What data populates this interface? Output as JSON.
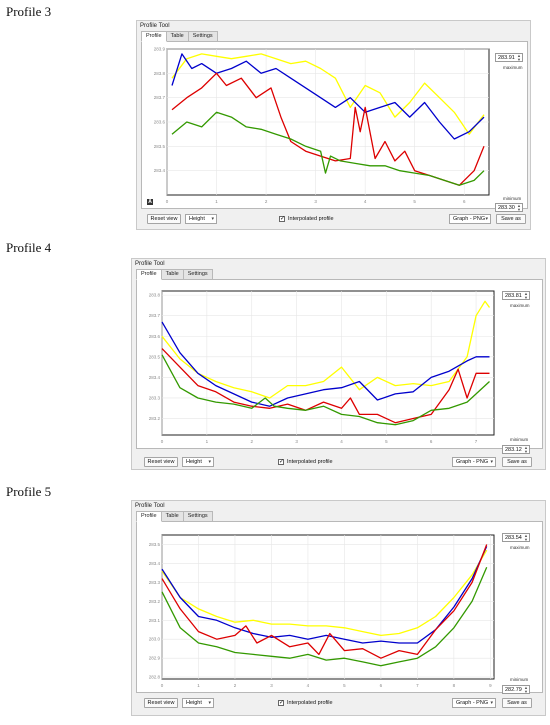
{
  "profiles": [
    {
      "heading": "Profile 3",
      "window_title": "Profile Tool",
      "tabs": [
        {
          "label": "Profile"
        },
        {
          "label": "Table"
        },
        {
          "label": "Settings"
        }
      ],
      "maximum_value": "283.91",
      "maximum_label": "maximum",
      "minimum_value": "283.30",
      "minimum_label": "minimum",
      "reset_view": "Reset view",
      "height_option": "Height",
      "interpolated_label": "Interpolated profile",
      "graph_option": "Graph - PNG",
      "save_as": "Save as"
    },
    {
      "heading": "Profile 4",
      "window_title": "Profile Tool",
      "tabs": [
        {
          "label": "Profile"
        },
        {
          "label": "Table"
        },
        {
          "label": "Settings"
        }
      ],
      "maximum_value": "283.81",
      "maximum_label": "maximum",
      "minimum_value": "283.12",
      "minimum_label": "minimum",
      "reset_view": "Reset view",
      "height_option": "Height",
      "interpolated_label": "Interpolated profile",
      "graph_option": "Graph - PNG",
      "save_as": "Save as"
    },
    {
      "heading": "Profile 5",
      "window_title": "Profile Tool",
      "tabs": [
        {
          "label": "Profile"
        },
        {
          "label": "Table"
        },
        {
          "label": "Settings"
        }
      ],
      "maximum_value": "283.54",
      "maximum_label": "maximum",
      "minimum_value": "282.79",
      "minimum_label": "minimum",
      "reset_view": "Reset view",
      "height_option": "Height",
      "interpolated_label": "Interpolated profile",
      "graph_option": "Graph - PNG",
      "save_as": "Save as"
    }
  ],
  "chart_data": [
    {
      "type": "line",
      "xlim": [
        0,
        6.5
      ],
      "ylim": [
        283.3,
        283.9
      ],
      "xticks": [
        0,
        1,
        2,
        3,
        4,
        5,
        6
      ],
      "yticks": [
        283.4,
        283.5,
        283.6,
        283.7,
        283.8,
        283.9
      ],
      "grid": true,
      "series": [
        {
          "color": "#ffff00",
          "x": [
            0.1,
            0.4,
            0.7,
            1.0,
            1.3,
            1.6,
            1.9,
            2.2,
            2.5,
            2.8,
            3.1,
            3.4,
            3.7,
            4.0,
            4.3,
            4.6,
            4.9,
            5.2,
            5.5,
            5.8,
            6.1,
            6.4
          ],
          "y": [
            283.78,
            283.86,
            283.88,
            283.87,
            283.86,
            283.87,
            283.88,
            283.86,
            283.84,
            283.85,
            283.82,
            283.78,
            283.66,
            283.75,
            283.72,
            283.62,
            283.68,
            283.76,
            283.7,
            283.64,
            283.55,
            283.63
          ]
        },
        {
          "color": "#0000cc",
          "x": [
            0.1,
            0.3,
            0.5,
            0.7,
            1.0,
            1.3,
            1.6,
            1.9,
            2.2,
            2.5,
            2.8,
            3.1,
            3.4,
            3.7,
            4.0,
            4.3,
            4.6,
            4.9,
            5.2,
            5.5,
            5.8,
            6.1,
            6.4
          ],
          "y": [
            283.75,
            283.88,
            283.82,
            283.84,
            283.8,
            283.82,
            283.85,
            283.8,
            283.82,
            283.78,
            283.74,
            283.7,
            283.66,
            283.7,
            283.64,
            283.66,
            283.68,
            283.62,
            283.68,
            283.6,
            283.53,
            283.56,
            283.62
          ]
        },
        {
          "color": "#dd0000",
          "x": [
            0.1,
            0.4,
            0.7,
            1.0,
            1.2,
            1.5,
            1.8,
            2.1,
            2.3,
            2.5,
            2.8,
            3.1,
            3.4,
            3.7,
            3.8,
            3.9,
            4.0,
            4.2,
            4.4,
            4.6,
            4.8,
            5.0,
            5.3,
            5.6,
            5.9,
            6.2,
            6.4
          ],
          "y": [
            283.65,
            283.7,
            283.74,
            283.8,
            283.75,
            283.78,
            283.7,
            283.74,
            283.62,
            283.52,
            283.48,
            283.46,
            283.44,
            283.45,
            283.66,
            283.56,
            283.66,
            283.45,
            283.52,
            283.44,
            283.48,
            283.4,
            283.38,
            283.36,
            283.34,
            283.4,
            283.5
          ]
        },
        {
          "color": "#339900",
          "x": [
            0.1,
            0.4,
            0.7,
            1.0,
            1.3,
            1.6,
            1.9,
            2.2,
            2.5,
            2.8,
            3.1,
            3.2,
            3.3,
            3.5,
            3.8,
            4.1,
            4.4,
            4.7,
            5.0,
            5.3,
            5.6,
            5.9,
            6.2,
            6.4
          ],
          "y": [
            283.55,
            283.6,
            283.58,
            283.64,
            283.62,
            283.58,
            283.57,
            283.55,
            283.53,
            283.5,
            283.48,
            283.39,
            283.46,
            283.44,
            283.43,
            283.42,
            283.42,
            283.4,
            283.39,
            283.38,
            283.36,
            283.34,
            283.36,
            283.4
          ]
        }
      ]
    },
    {
      "type": "line",
      "xlim": [
        0,
        7.4
      ],
      "ylim": [
        283.12,
        283.82
      ],
      "xticks": [
        0,
        1,
        2,
        3,
        4,
        5,
        6,
        7
      ],
      "yticks": [
        283.2,
        283.3,
        283.4,
        283.5,
        283.6,
        283.7,
        283.8
      ],
      "grid": true,
      "series": [
        {
          "color": "#ffff00",
          "x": [
            0.0,
            0.4,
            0.8,
            1.2,
            1.6,
            2.0,
            2.4,
            2.8,
            3.2,
            3.6,
            4.0,
            4.4,
            4.8,
            5.2,
            5.6,
            6.0,
            6.4,
            6.8,
            7.0,
            7.2,
            7.3
          ],
          "y": [
            283.6,
            283.49,
            283.42,
            283.38,
            283.35,
            283.33,
            283.3,
            283.36,
            283.36,
            283.38,
            283.45,
            283.34,
            283.4,
            283.36,
            283.37,
            283.36,
            283.38,
            283.5,
            283.7,
            283.77,
            283.74
          ]
        },
        {
          "color": "#0000cc",
          "x": [
            0.0,
            0.4,
            0.8,
            1.2,
            1.6,
            2.0,
            2.4,
            2.8,
            3.2,
            3.6,
            4.0,
            4.4,
            4.8,
            5.2,
            5.6,
            6.0,
            6.4,
            6.8,
            7.0,
            7.3
          ],
          "y": [
            283.67,
            283.52,
            283.42,
            283.36,
            283.32,
            283.28,
            283.26,
            283.3,
            283.32,
            283.34,
            283.35,
            283.38,
            283.29,
            283.32,
            283.33,
            283.4,
            283.43,
            283.48,
            283.5,
            283.5
          ]
        },
        {
          "color": "#dd0000",
          "x": [
            0.0,
            0.4,
            0.8,
            1.2,
            1.6,
            2.0,
            2.4,
            2.8,
            3.2,
            3.6,
            4.0,
            4.2,
            4.4,
            4.8,
            5.2,
            5.6,
            6.0,
            6.4,
            6.6,
            6.8,
            7.0,
            7.3
          ],
          "y": [
            283.54,
            283.45,
            283.36,
            283.33,
            283.28,
            283.26,
            283.25,
            283.27,
            283.24,
            283.28,
            283.25,
            283.3,
            283.22,
            283.22,
            283.18,
            283.2,
            283.22,
            283.34,
            283.44,
            283.3,
            283.42,
            283.42
          ]
        },
        {
          "color": "#339900",
          "x": [
            0.0,
            0.4,
            0.8,
            1.2,
            1.6,
            2.0,
            2.3,
            2.5,
            2.8,
            3.2,
            3.6,
            4.0,
            4.4,
            4.8,
            5.2,
            5.6,
            6.0,
            6.4,
            6.8,
            7.0,
            7.3
          ],
          "y": [
            283.51,
            283.35,
            283.3,
            283.28,
            283.27,
            283.25,
            283.3,
            283.26,
            283.25,
            283.24,
            283.26,
            283.22,
            283.21,
            283.18,
            283.17,
            283.19,
            283.24,
            283.25,
            283.28,
            283.32,
            283.38
          ]
        }
      ]
    },
    {
      "type": "line",
      "xlim": [
        0,
        9.1
      ],
      "ylim": [
        282.79,
        283.55
      ],
      "xticks": [
        0,
        1,
        2,
        3,
        4,
        5,
        6,
        7,
        8,
        9
      ],
      "yticks": [
        282.8,
        282.9,
        283.0,
        283.1,
        283.2,
        283.3,
        283.4,
        283.5
      ],
      "grid": true,
      "series": [
        {
          "color": "#ffff00",
          "x": [
            0.0,
            0.5,
            1.0,
            1.5,
            2.0,
            2.5,
            3.0,
            3.5,
            4.0,
            4.5,
            5.0,
            5.5,
            6.0,
            6.5,
            7.0,
            7.5,
            8.0,
            8.5,
            8.9
          ],
          "y": [
            283.36,
            283.22,
            283.16,
            283.12,
            283.09,
            283.1,
            283.08,
            283.08,
            283.07,
            283.07,
            283.06,
            283.04,
            283.02,
            283.03,
            283.06,
            283.12,
            283.22,
            283.34,
            283.47
          ]
        },
        {
          "color": "#0000cc",
          "x": [
            0.0,
            0.5,
            1.0,
            1.5,
            2.0,
            2.5,
            3.0,
            3.5,
            4.0,
            4.5,
            5.0,
            5.5,
            6.0,
            6.5,
            7.0,
            7.5,
            8.0,
            8.5,
            8.9
          ],
          "y": [
            283.37,
            283.22,
            283.12,
            283.1,
            283.06,
            283.03,
            283.01,
            283.02,
            283.0,
            283.02,
            283.0,
            282.98,
            282.99,
            282.98,
            282.98,
            283.05,
            283.17,
            283.32,
            283.49
          ]
        },
        {
          "color": "#dd0000",
          "x": [
            0.0,
            0.5,
            1.0,
            1.5,
            2.0,
            2.3,
            2.6,
            3.0,
            3.5,
            4.0,
            4.3,
            4.6,
            5.0,
            5.5,
            6.0,
            6.5,
            7.0,
            7.5,
            8.0,
            8.5,
            8.9
          ],
          "y": [
            283.32,
            283.16,
            283.04,
            283.0,
            283.02,
            283.07,
            282.98,
            283.02,
            282.96,
            282.98,
            282.92,
            283.03,
            282.94,
            282.95,
            282.9,
            282.94,
            282.92,
            283.05,
            283.15,
            283.3,
            283.5
          ]
        },
        {
          "color": "#339900",
          "x": [
            0.0,
            0.5,
            1.0,
            1.5,
            2.0,
            2.5,
            3.0,
            3.5,
            4.0,
            4.5,
            5.0,
            5.5,
            6.0,
            6.5,
            7.0,
            7.5,
            8.0,
            8.5,
            8.9
          ],
          "y": [
            283.25,
            283.06,
            282.98,
            282.96,
            282.93,
            282.92,
            282.91,
            282.9,
            282.92,
            282.89,
            282.9,
            282.88,
            282.86,
            282.88,
            282.9,
            282.96,
            283.06,
            283.2,
            283.38
          ]
        }
      ]
    }
  ]
}
